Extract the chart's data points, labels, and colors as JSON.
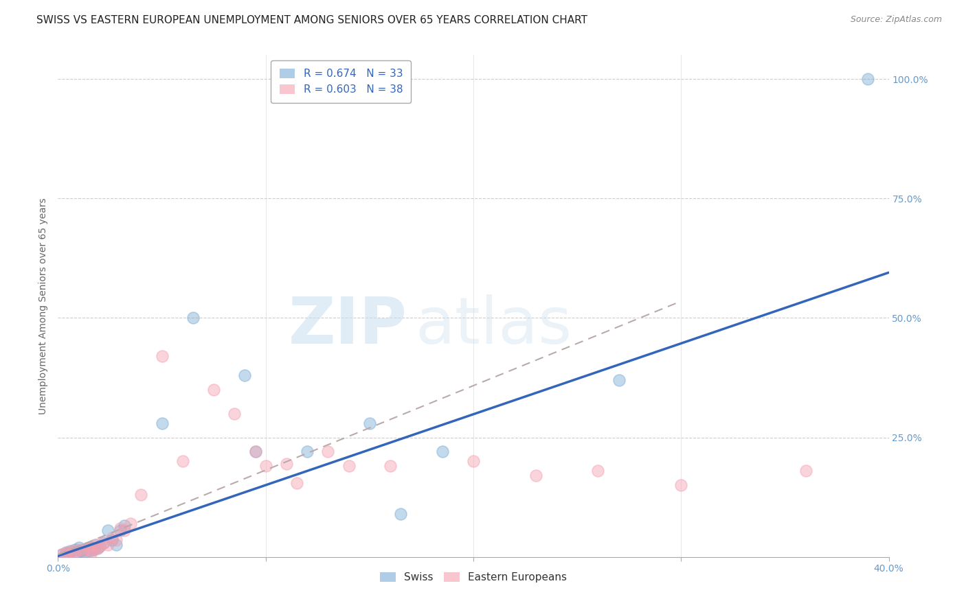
{
  "title": "SWISS VS EASTERN EUROPEAN UNEMPLOYMENT AMONG SENIORS OVER 65 YEARS CORRELATION CHART",
  "source": "Source: ZipAtlas.com",
  "ylabel": "Unemployment Among Seniors over 65 years",
  "xlim": [
    0.0,
    0.4
  ],
  "ylim": [
    0.0,
    1.05
  ],
  "xtick_positions": [
    0.0,
    0.1,
    0.2,
    0.3,
    0.4
  ],
  "xticklabels": [
    "0.0%",
    "",
    "",
    "",
    "40.0%"
  ],
  "ytick_positions": [
    0.0,
    0.25,
    0.5,
    0.75,
    1.0
  ],
  "ytick_labels": [
    "",
    "25.0%",
    "50.0%",
    "75.0%",
    "100.0%"
  ],
  "swiss_color": "#7aacd6",
  "eastern_color": "#f4a0b0",
  "swiss_R": "0.674",
  "swiss_N": "33",
  "eastern_R": "0.603",
  "eastern_N": "38",
  "watermark_zip": "ZIP",
  "watermark_atlas": "atlas",
  "swiss_scatter_x": [
    0.002,
    0.004,
    0.005,
    0.006,
    0.008,
    0.009,
    0.01,
    0.011,
    0.012,
    0.013,
    0.014,
    0.015,
    0.016,
    0.017,
    0.018,
    0.019,
    0.02,
    0.022,
    0.024,
    0.026,
    0.028,
    0.03,
    0.032,
    0.05,
    0.065,
    0.09,
    0.095,
    0.12,
    0.15,
    0.165,
    0.185,
    0.27,
    0.39
  ],
  "swiss_scatter_y": [
    0.005,
    0.01,
    0.008,
    0.012,
    0.015,
    0.01,
    0.02,
    0.012,
    0.015,
    0.01,
    0.018,
    0.013,
    0.02,
    0.015,
    0.025,
    0.018,
    0.022,
    0.03,
    0.055,
    0.035,
    0.025,
    0.055,
    0.065,
    0.28,
    0.5,
    0.38,
    0.22,
    0.22,
    0.28,
    0.09,
    0.22,
    0.37,
    1.0
  ],
  "eastern_scatter_x": [
    0.002,
    0.004,
    0.005,
    0.007,
    0.008,
    0.01,
    0.012,
    0.014,
    0.015,
    0.016,
    0.017,
    0.018,
    0.019,
    0.02,
    0.022,
    0.024,
    0.026,
    0.028,
    0.03,
    0.032,
    0.035,
    0.04,
    0.05,
    0.06,
    0.075,
    0.085,
    0.095,
    0.1,
    0.11,
    0.115,
    0.13,
    0.14,
    0.16,
    0.2,
    0.23,
    0.26,
    0.3,
    0.36
  ],
  "eastern_scatter_y": [
    0.005,
    0.008,
    0.01,
    0.012,
    0.01,
    0.015,
    0.012,
    0.018,
    0.02,
    0.01,
    0.015,
    0.025,
    0.018,
    0.022,
    0.03,
    0.025,
    0.04,
    0.035,
    0.06,
    0.055,
    0.07,
    0.13,
    0.42,
    0.2,
    0.35,
    0.3,
    0.22,
    0.19,
    0.195,
    0.155,
    0.22,
    0.19,
    0.19,
    0.2,
    0.17,
    0.18,
    0.15,
    0.18
  ],
  "swiss_trend_x": [
    0.0,
    0.4
  ],
  "swiss_trend_y": [
    0.002,
    0.595
  ],
  "eastern_trend_x": [
    0.0,
    0.3
  ],
  "eastern_trend_y": [
    0.005,
    0.535
  ],
  "grid_color": "#cccccc",
  "background_color": "#ffffff",
  "title_fontsize": 11,
  "axis_label_fontsize": 10,
  "tick_label_color": "#6699cc",
  "legend_fontsize": 11
}
